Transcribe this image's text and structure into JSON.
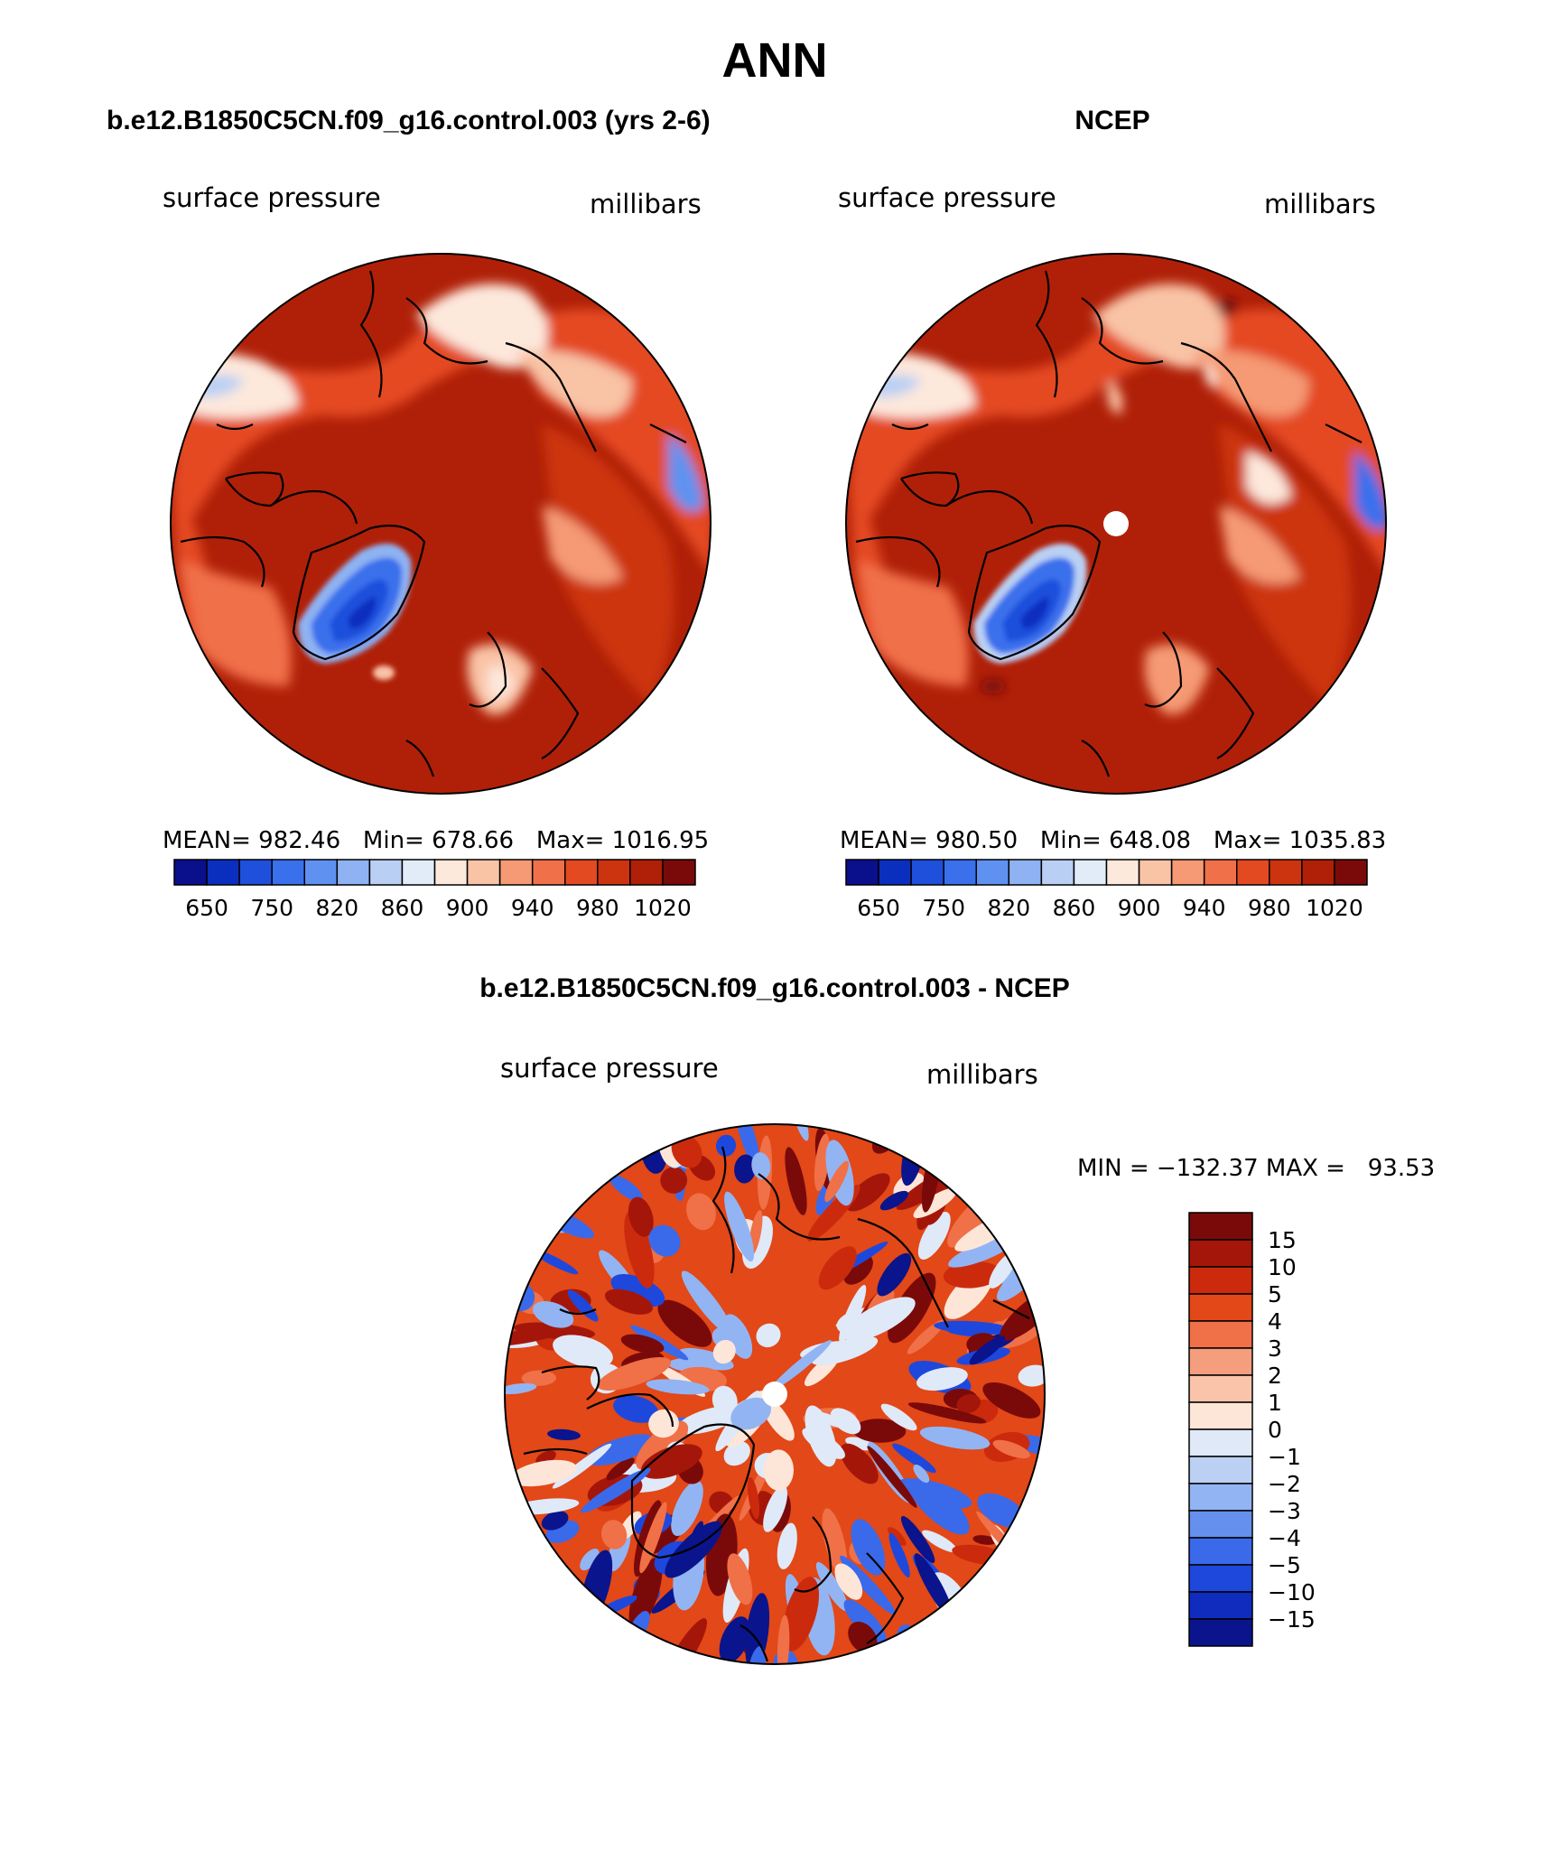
{
  "main_title": "ANN",
  "panels": [
    {
      "title": "b.e12.B1850C5CN.f09_g16.control.003 (yrs 2-6)",
      "left_label": "surface pressure",
      "right_label": "millibars",
      "stats": "MEAN= 982.46   Min= 678.66   Max= 1016.95",
      "pole_hole": false
    },
    {
      "title": "NCEP",
      "left_label": "surface pressure",
      "right_label": "millibars",
      "stats": "MEAN= 980.50   Min= 648.08   Max= 1035.83",
      "pole_hole": true
    },
    {
      "title": "b.e12.B1850C5CN.f09_g16.control.003 - NCEP",
      "left_label": "surface pressure",
      "right_label": "millibars",
      "stats": "MIN = −132.37 MAX =   93.53",
      "pole_hole": true
    }
  ],
  "abs_colorbar": {
    "colors": [
      "#0a0f8c",
      "#0a2fbf",
      "#1e50dc",
      "#3a70ec",
      "#5f92f0",
      "#8eb2f2",
      "#b9d0f4",
      "#e2ecf8",
      "#fde8dc",
      "#f9c3a6",
      "#f59a75",
      "#f0704a",
      "#e44a22",
      "#cc3410",
      "#b02008",
      "#7a0a0a"
    ],
    "labels": [
      "650",
      "750",
      "820",
      "860",
      "900",
      "940",
      "980",
      "1020"
    ]
  },
  "diff_colorbar": {
    "colors": [
      "#7a0a0a",
      "#a5160a",
      "#cc2a0c",
      "#e24818",
      "#f07048",
      "#f49e7e",
      "#fac4aa",
      "#fde6d8",
      "#dfe9f8",
      "#bcd0f4",
      "#93b4f2",
      "#6590ee",
      "#3a6aea",
      "#1e48dc",
      "#0f2cbe",
      "#0a148c"
    ],
    "labels": [
      "15",
      "10",
      "5",
      "4",
      "3",
      "2",
      "1",
      "0",
      "−1",
      "−2",
      "−3",
      "−4",
      "−5",
      "−10",
      "−15"
    ]
  }
}
